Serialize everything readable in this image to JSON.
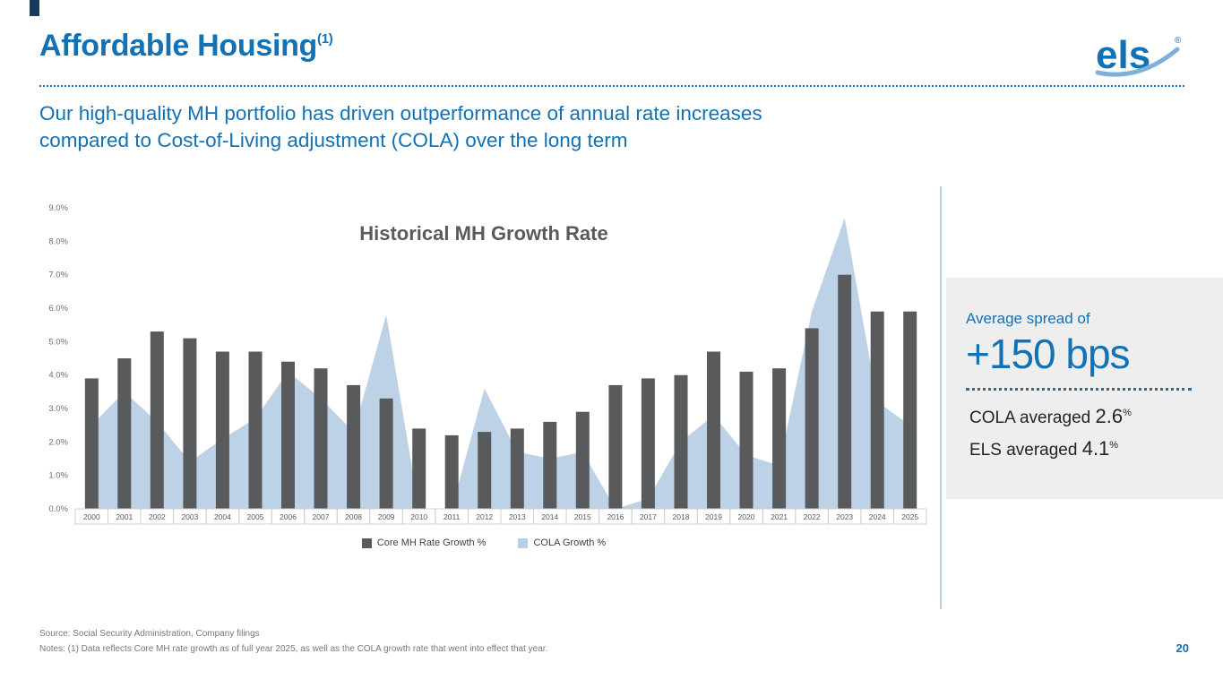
{
  "slide": {
    "title": "Affordable Housing",
    "title_superscript": "(1)",
    "subtitle_line1": "Our high-quality MH portfolio has driven outperformance of annual rate increases",
    "subtitle_line2": "compared to Cost-of-Living adjustment (COLA) over the long term",
    "page_number": "20"
  },
  "logo": {
    "text": "els",
    "registered_mark": "®"
  },
  "chart_data": {
    "type": "bar",
    "title": "Historical MH Growth Rate",
    "categories": [
      "2000",
      "2001",
      "2002",
      "2003",
      "2004",
      "2005",
      "2006",
      "2007",
      "2008",
      "2009",
      "2010",
      "2011",
      "2012",
      "2013",
      "2014",
      "2015",
      "2016",
      "2017",
      "2018",
      "2019",
      "2020",
      "2021",
      "2022",
      "2023",
      "2024",
      "2025"
    ],
    "series": [
      {
        "name": "Core MH Rate Growth %",
        "type": "bar",
        "color": "#595a5c",
        "values": [
          3.9,
          4.5,
          5.3,
          5.1,
          4.7,
          4.7,
          4.4,
          4.2,
          3.7,
          3.3,
          2.4,
          2.2,
          2.3,
          2.4,
          2.6,
          2.9,
          3.7,
          3.9,
          4.0,
          4.7,
          4.1,
          4.2,
          5.4,
          7.0,
          5.9,
          5.9
        ]
      },
      {
        "name": "COLA Growth %",
        "type": "area",
        "color": "#b9cfe6",
        "values": [
          2.5,
          3.5,
          2.6,
          1.4,
          2.1,
          2.7,
          4.1,
          3.3,
          2.3,
          5.8,
          0.0,
          0.0,
          3.6,
          1.7,
          1.5,
          1.7,
          0.0,
          0.3,
          2.0,
          2.8,
          1.6,
          1.3,
          5.9,
          8.7,
          3.2,
          2.5
        ]
      }
    ],
    "xlabel": "",
    "ylabel": "",
    "ylim": [
      0,
      9
    ],
    "yticks": [
      "0.0%",
      "1.0%",
      "2.0%",
      "3.0%",
      "4.0%",
      "5.0%",
      "6.0%",
      "7.0%",
      "8.0%",
      "9.0%"
    ],
    "grid": false,
    "legend_position": "bottom"
  },
  "callout": {
    "intro": "Average spread of",
    "headline": "+150 bps",
    "stat1_label": "COLA averaged ",
    "stat1_value": "2.6",
    "stat1_unit": "%",
    "stat2_label": "ELS averaged ",
    "stat2_value": "4.1",
    "stat2_unit": "%"
  },
  "footer": {
    "source": "Source: Social Security Administration, Company filings",
    "notes": "Notes:  (1) Data reflects Core MH rate growth as of full year 2025, as well as the COLA growth rate that went into effect that year."
  },
  "colors": {
    "accent_blue": "#1272b4",
    "bar_gray": "#595a5c",
    "area_blue": "#b9cfe6",
    "panel_gray": "#eeeeef"
  }
}
